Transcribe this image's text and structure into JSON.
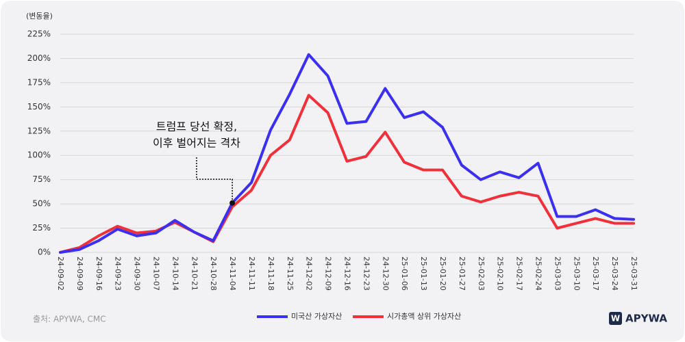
{
  "chart_data": {
    "type": "line",
    "y_label": "(변동율)",
    "annotation": [
      "트럼프 당선 확정,",
      "이후 벌어지는 격차"
    ],
    "annotation_index": 9,
    "source": "출처: APYWA, CMC",
    "logo": {
      "mark": "W",
      "text": "APYWA"
    },
    "categories": [
      "24-09-02",
      "24-09-09",
      "24-09-16",
      "24-09-23",
      "24-09-30",
      "24-10-07",
      "24-10-14",
      "24-10-21",
      "24-10-28",
      "24-11-04",
      "24-11-11",
      "24-11-18",
      "24-11-25",
      "24-12-02",
      "24-12-09",
      "24-12-16",
      "24-12-23",
      "24-12-30",
      "25-01-06",
      "25-01-13",
      "25-01-20",
      "25-01-27",
      "25-02-03",
      "25-02-10",
      "25-02-17",
      "25-02-24",
      "25-03-03",
      "25-03-10",
      "25-03-17",
      "25-03-24",
      "25-03-31"
    ],
    "series": [
      {
        "name": "미국산 가상자산",
        "color": "#3b2ff0",
        "values": [
          0,
          3,
          12,
          24,
          17,
          20,
          33,
          21,
          12,
          51,
          72,
          126,
          163,
          204,
          182,
          133,
          135,
          169,
          139,
          145,
          129,
          90,
          75,
          83,
          77,
          92,
          37,
          37,
          44,
          35,
          34
        ]
      },
      {
        "name": "시가총액 상위 가상자산",
        "color": "#f0303a",
        "values": [
          0,
          5,
          17,
          27,
          20,
          22,
          31,
          21,
          11,
          47,
          64,
          100,
          116,
          162,
          144,
          94,
          99,
          124,
          93,
          85,
          85,
          58,
          52,
          58,
          62,
          58,
          25,
          30,
          35,
          30,
          30
        ]
      }
    ],
    "ylim": [
      0,
      225
    ],
    "yticks": [
      {
        "value": 0,
        "label": "0%"
      },
      {
        "value": 25,
        "label": "25%"
      },
      {
        "value": 50,
        "label": "50%"
      },
      {
        "value": 75,
        "label": "75%"
      },
      {
        "value": 100,
        "label": "100%"
      },
      {
        "value": 125,
        "label": "125%"
      },
      {
        "value": 150,
        "label": "150%"
      },
      {
        "value": 175,
        "label": "175%"
      },
      {
        "value": 200,
        "label": "200%"
      },
      {
        "value": 225,
        "label": "225%"
      }
    ],
    "grid": true
  }
}
